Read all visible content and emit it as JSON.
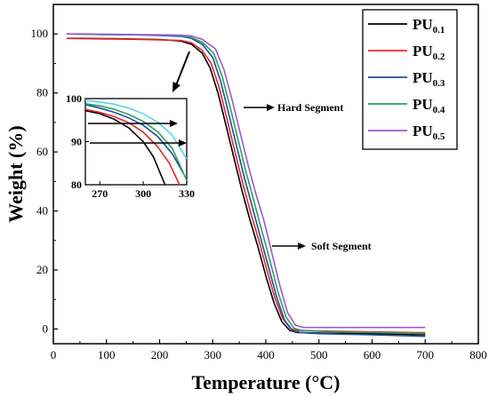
{
  "chart_data": {
    "type": "line",
    "xlabel": "Temperature (°C)",
    "ylabel": "Weight (%)",
    "xlim": [
      0,
      800
    ],
    "ylim": [
      -5,
      110
    ],
    "xticks": [
      "0",
      "100",
      "200",
      "300",
      "400",
      "500",
      "600",
      "700",
      "800"
    ],
    "yticks": [
      "0",
      "20",
      "40",
      "60",
      "80",
      "100"
    ],
    "grid": false,
    "legend_position": "top-right",
    "series": [
      {
        "name": "PU",
        "sub": "0.1",
        "color": "#000000",
        "x": [
          25,
          50,
          100,
          150,
          200,
          240,
          260,
          280,
          295,
          310,
          325,
          340,
          355,
          370,
          385,
          400,
          415,
          430,
          445,
          460,
          500,
          600,
          700
        ],
        "y": [
          98.5,
          98.5,
          98.4,
          98.3,
          98.1,
          97.6,
          96.5,
          93.5,
          88.5,
          80,
          69,
          58,
          47,
          37,
          28,
          18,
          9,
          2.5,
          -0.5,
          -1.2,
          -1.4,
          -1.6,
          -2.0
        ]
      },
      {
        "name": "PU",
        "sub": "0.2",
        "color": "#e8262a",
        "x": [
          25,
          50,
          100,
          150,
          200,
          240,
          260,
          280,
          297,
          312,
          327,
          342,
          357,
          372,
          387,
          402,
          417,
          432,
          447,
          462,
          500,
          600,
          700
        ],
        "y": [
          98.5,
          98.4,
          98.3,
          98.2,
          98.0,
          97.8,
          97.0,
          94.5,
          90,
          82,
          71,
          60,
          49,
          39,
          30,
          20,
          10.5,
          3.5,
          0,
          -0.5,
          -0.7,
          -1.0,
          -1.3
        ]
      },
      {
        "name": "PU",
        "sub": "0.3",
        "color": "#1f4e9b",
        "x": [
          25,
          50,
          100,
          150,
          200,
          240,
          260,
          280,
          300,
          315,
          330,
          345,
          360,
          375,
          390,
          405,
          420,
          435,
          450,
          465,
          500,
          600,
          700
        ],
        "y": [
          100,
          99.9,
          99.8,
          99.7,
          99.5,
          99.2,
          98.5,
          96.5,
          92,
          84,
          73,
          62,
          51,
          41,
          31,
          21,
          11,
          3,
          -0.5,
          -1.2,
          -1.6,
          -2.0,
          -2.5
        ]
      },
      {
        "name": "PU",
        "sub": "0.4",
        "color": "#2e9e58",
        "x": [
          25,
          50,
          100,
          150,
          200,
          240,
          260,
          280,
          302,
          318,
          333,
          348,
          363,
          378,
          393,
          408,
          423,
          438,
          453,
          468,
          500,
          600,
          700
        ],
        "y": [
          100,
          99.9,
          99.8,
          99.7,
          99.6,
          99.4,
          98.8,
          97.2,
          93.5,
          85.5,
          75,
          64,
          53,
          43,
          33,
          23,
          12.5,
          4,
          0.2,
          -0.5,
          -0.8,
          -1.2,
          -1.6
        ]
      },
      {
        "name": "PU",
        "sub": "0.5",
        "color": "#9b59d0",
        "x": [
          25,
          50,
          100,
          150,
          200,
          240,
          260,
          280,
          305,
          321,
          336,
          351,
          366,
          381,
          396,
          411,
          426,
          441,
          456,
          471,
          500,
          600,
          700
        ],
        "y": [
          100,
          100,
          99.9,
          99.8,
          99.7,
          99.6,
          99.3,
          98.2,
          95,
          88,
          78,
          67,
          56,
          46,
          37,
          26,
          15,
          5.5,
          1.2,
          0.5,
          0.5,
          0.5,
          0.5
        ]
      }
    ],
    "inset": {
      "xlim": [
        260,
        330
      ],
      "ylim": [
        80,
        100
      ],
      "xticks": [
        "270",
        "300",
        "330"
      ],
      "yticks": [
        "80",
        "90",
        "100"
      ],
      "series": [
        {
          "color": "#000000",
          "x": [
            260,
            270,
            280,
            290,
            300,
            307,
            315
          ],
          "y": [
            97.2,
            96.5,
            95.2,
            93.2,
            90,
            86.5,
            80
          ]
        },
        {
          "color": "#e8262a",
          "x": [
            260,
            270,
            280,
            290,
            300,
            310,
            318,
            325
          ],
          "y": [
            97.5,
            96.8,
            95.8,
            94.4,
            92.2,
            88.8,
            85,
            80
          ]
        },
        {
          "color": "#1f4e9b",
          "x": [
            260,
            270,
            280,
            290,
            300,
            310,
            320,
            328
          ],
          "y": [
            98.6,
            97.8,
            96.8,
            95.5,
            93.8,
            91.2,
            87.2,
            82.5
          ]
        },
        {
          "color": "#2e9e58",
          "x": [
            260,
            270,
            280,
            290,
            300,
            310,
            320,
            330
          ],
          "y": [
            98.8,
            98.3,
            97.5,
            96.3,
            94.7,
            92.3,
            88.5,
            81
          ]
        },
        {
          "color": "#5ad5e8",
          "x": [
            260,
            270,
            280,
            290,
            300,
            310,
            320,
            330
          ],
          "y": [
            99.6,
            99.2,
            98.7,
            97.8,
            96.5,
            94.5,
            91.5,
            86
          ]
        }
      ]
    },
    "annotations": [
      {
        "text": "Hard Segment"
      },
      {
        "text": "Soft Segment"
      }
    ]
  }
}
